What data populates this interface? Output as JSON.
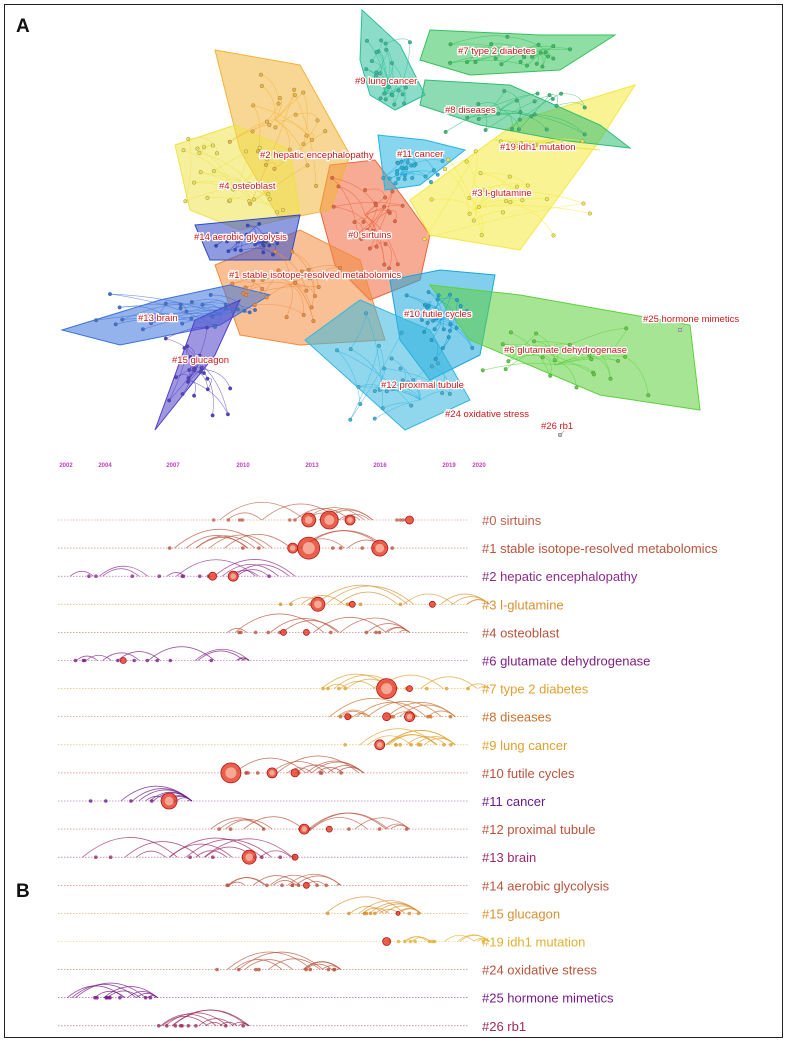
{
  "panel_a": {
    "label": "A",
    "clusters": [
      {
        "label": "#0 sirtuins",
        "color": "#f0643c"
      },
      {
        "label": "#1 stable isotope-resolved metabolomics",
        "color": "#f28c3c"
      },
      {
        "label": "#2 hepatic encephalopathy",
        "color": "#f3b53a"
      },
      {
        "label": "#3 l-glutamine",
        "color": "#f4e93c"
      },
      {
        "label": "#4 osteoblast",
        "color": "#eee34a"
      },
      {
        "label": "#7 type 2 diabetes",
        "color": "#33c25a"
      },
      {
        "label": "#8 diseases",
        "color": "#2fbd74"
      },
      {
        "label": "#9 lung cancer",
        "color": "#2cc09a"
      },
      {
        "label": "#10 futile cycles",
        "color": "#19a7dc"
      },
      {
        "label": "#11 cancer",
        "color": "#22b5e2"
      },
      {
        "label": "#12 proximal tubule",
        "color": "#35b6e0"
      },
      {
        "label": "#13 brain",
        "color": "#3d72da"
      },
      {
        "label": "#14 aerobic glycolysis",
        "color": "#3348c8"
      },
      {
        "label": "#15 glucagon",
        "color": "#5140c8"
      },
      {
        "label": "#6 glutamate dehydrogenase",
        "color": "#5cd03c"
      },
      {
        "label": "#19 idh1 mutation",
        "color": "#e8e84a"
      },
      {
        "label": "#24 oxidative stress",
        "color": "#bbbbbb"
      },
      {
        "label": "#25 hormone mimetics",
        "color": "#bbbbbb"
      },
      {
        "label": "#26 rb1",
        "color": "#bbbbbb"
      }
    ]
  },
  "panel_b": {
    "label": "B",
    "years": [
      "2002",
      "2004",
      "2007",
      "2010",
      "2013",
      "2016",
      "2019",
      "2020"
    ],
    "year_color": "#c040c0",
    "rows": [
      {
        "label": "#0 sirtuins",
        "color": "#c0604a"
      },
      {
        "label": "#1 stable isotope-resolved metabolomics",
        "color": "#b9533c"
      },
      {
        "label": "#2 hepatic encephalopathy",
        "color": "#8e2a8a"
      },
      {
        "label": "#3 l-glutamine",
        "color": "#d99030"
      },
      {
        "label": "#4 osteoblast",
        "color": "#b9533c"
      },
      {
        "label": "#6 glutamate dehydrogenase",
        "color": "#7e1e84"
      },
      {
        "label": "#7 type 2 diabetes",
        "color": "#e0a030"
      },
      {
        "label": "#8 diseases",
        "color": "#c8702e"
      },
      {
        "label": "#9 lung cancer",
        "color": "#e0a030"
      },
      {
        "label": "#10 futile cycles",
        "color": "#b9533c"
      },
      {
        "label": "#11 cancer",
        "color": "#6a1a8a"
      },
      {
        "label": "#12 proximal tubule",
        "color": "#b9533c"
      },
      {
        "label": "#13 brain",
        "color": "#9a2a6a"
      },
      {
        "label": "#14 aerobic glycolysis",
        "color": "#b9533c"
      },
      {
        "label": "#15 glucagon",
        "color": "#d99030"
      },
      {
        "label": "#19 idh1 mutation",
        "color": "#e0b030"
      },
      {
        "label": "#24 oxidative stress",
        "color": "#b9533c"
      },
      {
        "label": "#25 hormone mimetics",
        "color": "#7a1a8a"
      },
      {
        "label": "#26 rb1",
        "color": "#9a2a5a"
      }
    ]
  }
}
